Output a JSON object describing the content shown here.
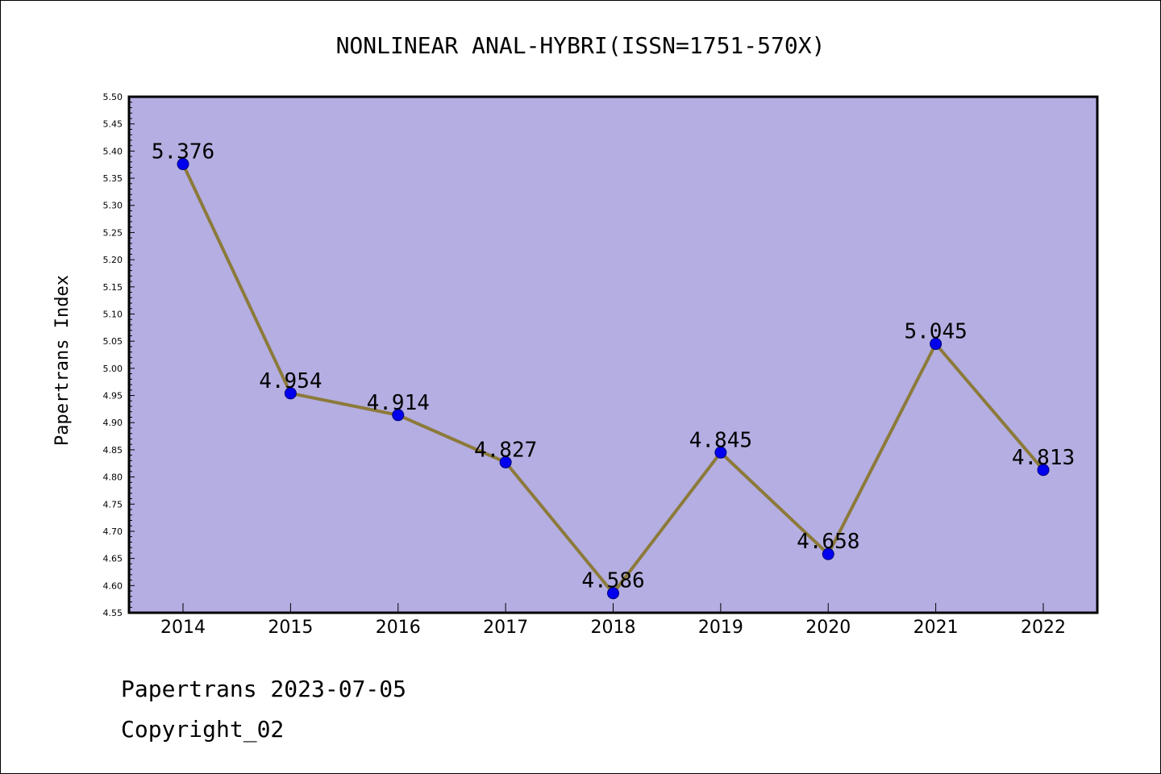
{
  "chart_data": {
    "type": "line",
    "title": "NONLINEAR ANAL-HYBRI(ISSN=1751-570X)",
    "xlabel": "",
    "ylabel": "Papertrans Index",
    "categories": [
      "2014",
      "2015",
      "2016",
      "2017",
      "2018",
      "2019",
      "2020",
      "2021",
      "2022"
    ],
    "values": [
      5.376,
      4.954,
      4.914,
      4.827,
      4.586,
      4.845,
      4.658,
      5.045,
      4.813
    ],
    "data_labels": [
      "5.376",
      "4.954",
      "4.914",
      "4.827",
      "4.586",
      "4.845",
      "4.658",
      "5.045",
      "4.813"
    ],
    "ylim": [
      4.55,
      5.5
    ],
    "yticks": [
      "4.55",
      "4.60",
      "4.65",
      "4.70",
      "4.75",
      "4.80",
      "4.85",
      "4.90",
      "4.95",
      "5.00",
      "5.05",
      "5.10",
      "5.15",
      "5.20",
      "5.25",
      "5.30",
      "5.35",
      "5.40",
      "5.45",
      "5.50"
    ],
    "grid": false,
    "colors": {
      "plot_background": "#b4aee2",
      "line": "#8c7a3a",
      "marker": "#0000ee"
    }
  },
  "footer": {
    "line1": "Papertrans 2023-07-05",
    "line2": "Copyright_02"
  }
}
